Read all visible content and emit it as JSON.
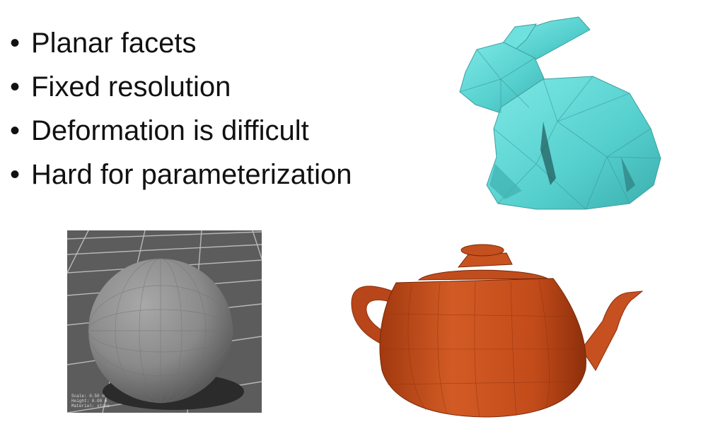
{
  "bullets": [
    "Planar facets",
    "Fixed resolution",
    "Deformation is difficult",
    "Hard for parameterization"
  ],
  "bullet_symbol": "•",
  "figures": {
    "bunny": {
      "subject": "faceted bunny mesh",
      "color": "#5ed8d6"
    },
    "sphere": {
      "subject": "faceted sphere on grid floor",
      "color": "#8a8a8a",
      "caption_lines": [
        "Scale: 0.50 m",
        "Height: 0.00 m",
        "Material: stone"
      ]
    },
    "teapot": {
      "subject": "faceted teapot mesh",
      "color": "#c94d1e"
    }
  }
}
